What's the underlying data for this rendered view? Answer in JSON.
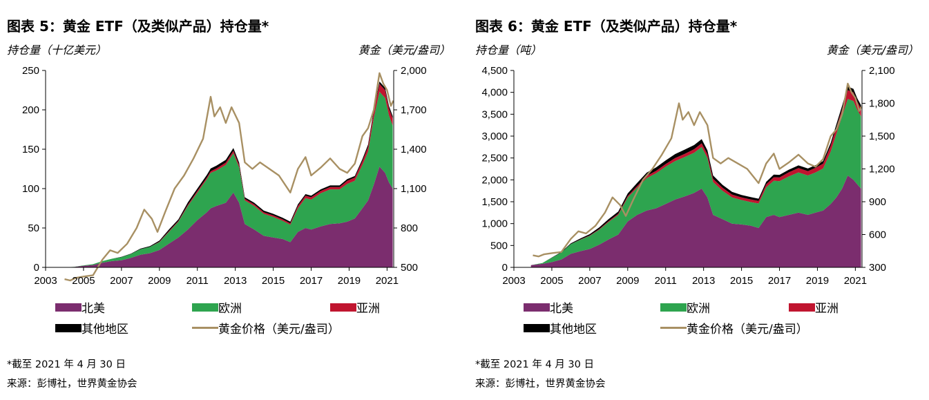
{
  "charts": [
    {
      "figure_title": "图表 5：黄金 ETF（及类似产品）持仓量*",
      "left_unit": "持仓量（十亿美元）",
      "right_unit": "黄金（美元/盎司）",
      "note": "*截至 2021 年 4 月 30 日",
      "source": "来源：彭博社，世界黄金协会"
    },
    {
      "figure_title": "图表 6：黄金 ETF（及类似产品）持仓量*",
      "left_unit": "持仓量（吨）",
      "right_unit": "黄金（美元/盎司）",
      "note": "*截至 2021 年 4 月 30 日",
      "source": "来源：彭博社，世界黄金协会"
    }
  ],
  "legend": {
    "na": "北美",
    "eu": "欧洲",
    "asia": "亚洲",
    "other": "其他地区",
    "gold": "黄金价格（美元/盎司）"
  },
  "colors": {
    "na": "#7B2D6E",
    "eu": "#2EA44F",
    "asia": "#C0152F",
    "other": "#000000",
    "gold": "#A89063"
  },
  "chart_data": [
    {
      "type": "area",
      "stacked": true,
      "title": "图表 5：黄金 ETF（及类似产品）持仓量*",
      "ylabel": "持仓量（十亿美元）",
      "y2label": "黄金（美元/盎司）",
      "x_ticks": [
        "2003",
        "2005",
        "2007",
        "2009",
        "2011",
        "2013",
        "2015",
        "2017",
        "2019",
        "2021"
      ],
      "x_range": [
        2003,
        2021.35
      ],
      "ylim": [
        0,
        250
      ],
      "y_ticks": [
        0,
        50,
        100,
        150,
        200,
        250
      ],
      "y2lim": [
        500,
        2000
      ],
      "y2_ticks": [
        "500",
        "800",
        "1,100",
        "1,400",
        "1,700",
        "2,000"
      ],
      "x": [
        2003.0,
        2004.0,
        2004.5,
        2005.0,
        2005.5,
        2006.0,
        2006.5,
        2007.0,
        2007.5,
        2008.0,
        2008.5,
        2009.0,
        2009.5,
        2010.0,
        2010.5,
        2011.0,
        2011.5,
        2011.7,
        2012.0,
        2012.5,
        2012.9,
        2013.2,
        2013.5,
        2014.0,
        2014.5,
        2015.0,
        2015.5,
        2015.9,
        2016.3,
        2016.7,
        2017.0,
        2017.5,
        2018.0,
        2018.5,
        2018.9,
        2019.3,
        2019.7,
        2020.0,
        2020.3,
        2020.6,
        2020.9,
        2021.1,
        2021.3
      ],
      "series": [
        {
          "name": "北美",
          "values": [
            0,
            0,
            0.5,
            2,
            3,
            6,
            8,
            9,
            12,
            16,
            18,
            22,
            30,
            38,
            48,
            60,
            70,
            75,
            78,
            82,
            95,
            82,
            55,
            48,
            40,
            38,
            36,
            32,
            45,
            50,
            48,
            52,
            55,
            56,
            58,
            62,
            75,
            85,
            105,
            128,
            120,
            108,
            100
          ]
        },
        {
          "name": "欧洲",
          "values": [
            0,
            0,
            0.2,
            0.5,
            1,
            2,
            3,
            4,
            5,
            7,
            8,
            10,
            15,
            20,
            30,
            35,
            42,
            45,
            45,
            48,
            50,
            45,
            30,
            30,
            28,
            26,
            23,
            22,
            30,
            38,
            38,
            42,
            44,
            43,
            48,
            48,
            55,
            62,
            85,
            95,
            95,
            85,
            80
          ]
        },
        {
          "name": "亚洲",
          "values": [
            0,
            0,
            0,
            0,
            0,
            0,
            0,
            0,
            0,
            0,
            0,
            0.5,
            1,
            1,
            1.5,
            2,
            2,
            2,
            2.5,
            3,
            3,
            3,
            2,
            2,
            2,
            2,
            2,
            2,
            3,
            3,
            3,
            3,
            3,
            3,
            4,
            4,
            5,
            6,
            8,
            10,
            10,
            9,
            9
          ]
        },
        {
          "name": "其他地区",
          "values": [
            0,
            0,
            0,
            0,
            0,
            0,
            0,
            0.3,
            0.5,
            0.8,
            1,
            1.5,
            2,
            2,
            3,
            3,
            3.5,
            3.5,
            3.5,
            3.5,
            3.5,
            3,
            2,
            2,
            2,
            2,
            2,
            2,
            2,
            2,
            2,
            2,
            2,
            2,
            2,
            2,
            2.5,
            3,
            3,
            3,
            3,
            3,
            3
          ]
        }
      ],
      "line_series": {
        "name": "黄金价格（美元/盎司）",
        "x": [
          2004.0,
          2004.3,
          2004.6,
          2005.0,
          2005.5,
          2006.0,
          2006.4,
          2006.8,
          2007.3,
          2007.8,
          2008.2,
          2008.6,
          2008.9,
          2009.3,
          2009.8,
          2010.3,
          2010.8,
          2011.3,
          2011.7,
          2011.9,
          2012.2,
          2012.5,
          2012.8,
          2013.2,
          2013.5,
          2013.9,
          2014.3,
          2014.8,
          2015.3,
          2015.9,
          2016.3,
          2016.7,
          2017.0,
          2017.5,
          2018.0,
          2018.5,
          2018.9,
          2019.3,
          2019.7,
          2020.0,
          2020.3,
          2020.6,
          2020.8,
          2021.0,
          2021.2,
          2021.33
        ],
        "values": [
          410,
          400,
          420,
          430,
          440,
          560,
          630,
          610,
          680,
          800,
          940,
          870,
          770,
          920,
          1100,
          1200,
          1330,
          1480,
          1800,
          1650,
          1720,
          1600,
          1720,
          1600,
          1300,
          1250,
          1300,
          1250,
          1200,
          1070,
          1250,
          1340,
          1200,
          1260,
          1330,
          1250,
          1220,
          1290,
          1500,
          1560,
          1700,
          1980,
          1900,
          1850,
          1730,
          1770
        ]
      }
    },
    {
      "type": "area",
      "stacked": true,
      "title": "图表 6：黄金 ETF（及类似产品）持仓量*",
      "ylabel": "持仓量（吨）",
      "y2label": "黄金（美元/盎司）",
      "x_ticks": [
        "2003",
        "2005",
        "2007",
        "2009",
        "2011",
        "2013",
        "2015",
        "2017",
        "2019",
        "2021"
      ],
      "x_range": [
        2003,
        2021.35
      ],
      "ylim": [
        0,
        4500
      ],
      "y_ticks": [
        "0",
        "500",
        "1,000",
        "1,500",
        "2,000",
        "2,500",
        "3,000",
        "3,500",
        "4,000",
        "4,500"
      ],
      "y2lim": [
        300,
        2100
      ],
      "y2_ticks": [
        "300",
        "600",
        "900",
        "1,200",
        "1,500",
        "1,800",
        "2,100"
      ],
      "x": [
        2003.9,
        2004.5,
        2005.0,
        2005.5,
        2006.0,
        2006.5,
        2007.0,
        2007.5,
        2008.0,
        2008.5,
        2009.0,
        2009.5,
        2010.0,
        2010.5,
        2011.0,
        2011.5,
        2012.0,
        2012.5,
        2012.9,
        2013.2,
        2013.5,
        2014.0,
        2014.5,
        2015.0,
        2015.5,
        2015.9,
        2016.3,
        2016.7,
        2017.0,
        2017.5,
        2018.0,
        2018.5,
        2018.9,
        2019.3,
        2019.7,
        2020.0,
        2020.3,
        2020.6,
        2020.9,
        2021.1,
        2021.3
      ],
      "series": [
        {
          "name": "北美",
          "values": [
            50,
            80,
            120,
            180,
            310,
            370,
            420,
            520,
            640,
            750,
            1050,
            1200,
            1300,
            1350,
            1450,
            1550,
            1620,
            1700,
            1800,
            1600,
            1200,
            1100,
            1000,
            980,
            950,
            900,
            1150,
            1200,
            1150,
            1200,
            1250,
            1200,
            1250,
            1300,
            1450,
            1600,
            1800,
            2100,
            2000,
            1900,
            1800
          ]
        },
        {
          "name": "欧洲",
          "values": [
            0,
            20,
            100,
            160,
            220,
            260,
            300,
            340,
            400,
            450,
            550,
            620,
            740,
            800,
            850,
            880,
            900,
            920,
            950,
            900,
            750,
            650,
            600,
            560,
            540,
            560,
            680,
            780,
            820,
            880,
            920,
            900,
            920,
            960,
            1200,
            1450,
            1650,
            1750,
            1800,
            1700,
            1650
          ]
        },
        {
          "name": "亚洲",
          "values": [
            0,
            0,
            0,
            0,
            0,
            5,
            10,
            15,
            20,
            25,
            30,
            40,
            50,
            55,
            60,
            70,
            75,
            80,
            85,
            85,
            75,
            70,
            65,
            60,
            60,
            60,
            70,
            80,
            85,
            95,
            100,
            100,
            105,
            110,
            130,
            150,
            170,
            200,
            200,
            190,
            180
          ]
        },
        {
          "name": "其他地区",
          "values": [
            0,
            0,
            5,
            10,
            20,
            25,
            30,
            40,
            45,
            50,
            60,
            70,
            75,
            80,
            85,
            90,
            95,
            95,
            95,
            90,
            75,
            65,
            60,
            55,
            55,
            50,
            55,
            60,
            60,
            60,
            60,
            60,
            60,
            60,
            65,
            70,
            75,
            80,
            80,
            75,
            75
          ]
        }
      ],
      "line_series": {
        "name": "黄金价格（美元/盎司）",
        "x": [
          2004.0,
          2004.3,
          2004.6,
          2005.0,
          2005.5,
          2006.0,
          2006.4,
          2006.8,
          2007.3,
          2007.8,
          2008.2,
          2008.6,
          2008.9,
          2009.3,
          2009.8,
          2010.3,
          2010.8,
          2011.3,
          2011.7,
          2011.9,
          2012.2,
          2012.5,
          2012.8,
          2013.2,
          2013.5,
          2013.9,
          2014.3,
          2014.8,
          2015.3,
          2015.9,
          2016.3,
          2016.7,
          2017.0,
          2017.5,
          2018.0,
          2018.5,
          2018.9,
          2019.3,
          2019.7,
          2020.0,
          2020.3,
          2020.6,
          2020.8,
          2021.0,
          2021.2,
          2021.33
        ],
        "values": [
          410,
          400,
          420,
          430,
          440,
          560,
          630,
          610,
          680,
          800,
          940,
          870,
          770,
          920,
          1100,
          1200,
          1330,
          1480,
          1800,
          1650,
          1720,
          1600,
          1720,
          1600,
          1300,
          1250,
          1300,
          1250,
          1200,
          1070,
          1250,
          1340,
          1200,
          1260,
          1330,
          1250,
          1220,
          1290,
          1500,
          1560,
          1700,
          1980,
          1900,
          1850,
          1730,
          1770
        ]
      }
    }
  ]
}
